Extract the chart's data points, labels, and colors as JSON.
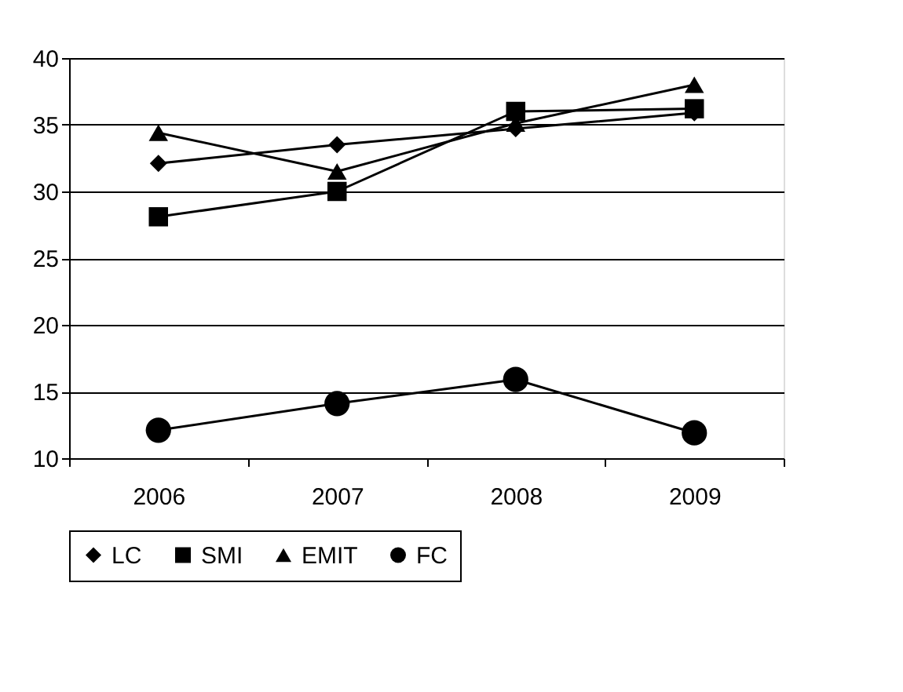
{
  "chart_data": {
    "type": "line",
    "categories": [
      "2006",
      "2007",
      "2008",
      "2009"
    ],
    "series": [
      {
        "name": "LC",
        "color": "#000000",
        "marker": "diamond",
        "values": [
          32.1,
          33.5,
          34.7,
          35.9
        ]
      },
      {
        "name": "SMI",
        "color": "#000000",
        "marker": "square",
        "values": [
          28.1,
          30.0,
          36.0,
          36.2
        ]
      },
      {
        "name": "EMIT",
        "color": "#000000",
        "marker": "triangle",
        "values": [
          34.4,
          31.5,
          35.1,
          38.0
        ]
      },
      {
        "name": "FC",
        "color": "#000000",
        "marker": "circle",
        "values": [
          12.1,
          14.1,
          15.9,
          11.9
        ]
      }
    ],
    "ylim": [
      10,
      40
    ],
    "yticks": [
      10,
      15,
      20,
      25,
      30,
      35,
      40
    ],
    "grid": "y",
    "legend": "bottom",
    "line_style": "solid"
  }
}
